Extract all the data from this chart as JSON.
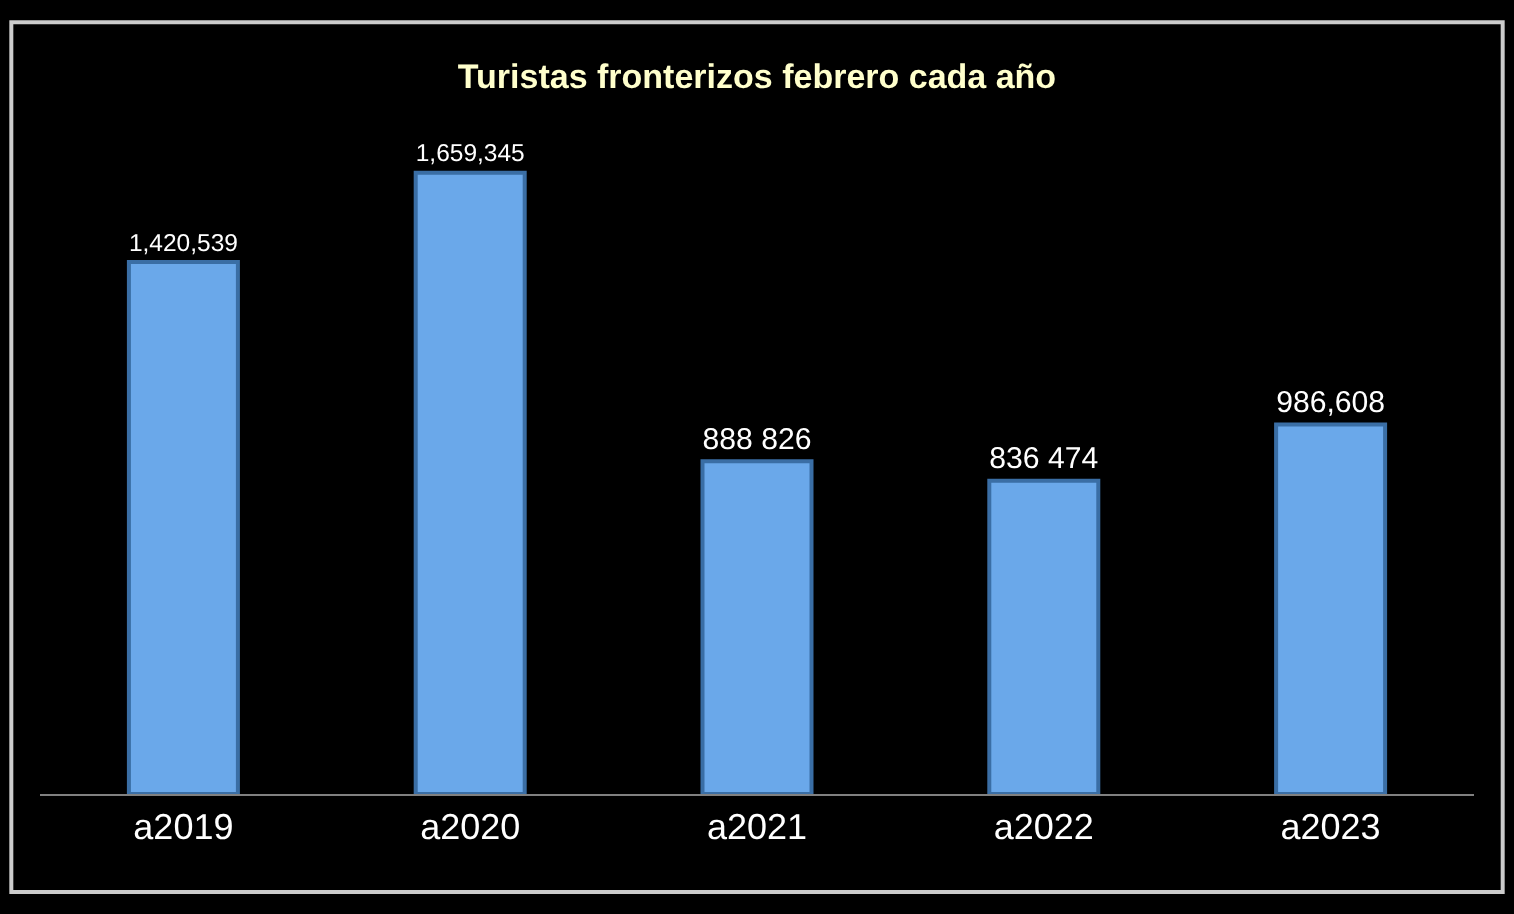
{
  "chart_data": {
    "type": "bar",
    "title": "Turistas fronterizos febrero cada año",
    "categories": [
      "a2019",
      "a2020",
      "a2021",
      "a2022",
      "a2023"
    ],
    "values": [
      1420539,
      1659345,
      888826,
      836474,
      986608
    ],
    "value_labels": [
      "1,420,539",
      "1,659,345",
      "888 826",
      "836 474",
      "986,608"
    ],
    "color": "#6aa8ea",
    "grid": false,
    "legend": false
  }
}
